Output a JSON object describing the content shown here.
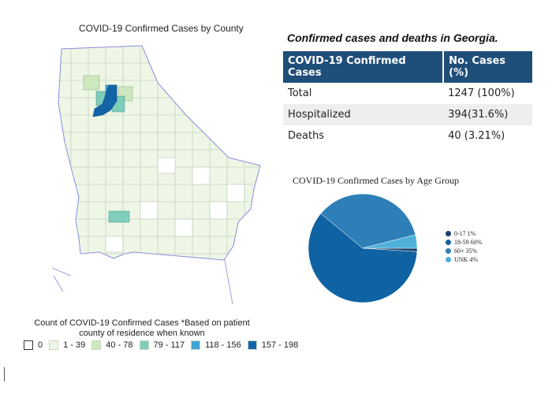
{
  "map": {
    "title": "COVID-19 Confirmed Cases by County",
    "legend_title": "Count of COVID-19 Confirmed Cases *Based on patient county of residence when known",
    "legend": [
      {
        "label": "0",
        "color": "#ffffff"
      },
      {
        "label": "1 - 39",
        "color": "#eef7e6"
      },
      {
        "label": "40 - 78",
        "color": "#cde8bf"
      },
      {
        "label": "79 - 117",
        "color": "#7fcdbb"
      },
      {
        "label": "118 - 156",
        "color": "#41a3d1"
      },
      {
        "label": "157 - 198",
        "color": "#1465a8"
      }
    ]
  },
  "table": {
    "caption": "Confirmed cases and deaths in Georgia.",
    "headers": [
      "COVID-19 Confirmed Cases",
      "No. Cases (%)"
    ],
    "rows": [
      [
        "Total",
        "1247 (100%)"
      ],
      [
        "Hospitalized",
        "394(31.6%)"
      ],
      [
        "Deaths",
        "40 (3.21%)"
      ]
    ]
  },
  "chart_data": {
    "type": "pie",
    "title": "COVID-19 Confirmed Cases by Age Group",
    "legend_position": "right",
    "slices": [
      {
        "label": "0-17 1%",
        "value": 1,
        "color": "#1d3f6e"
      },
      {
        "label": "18-59 60%",
        "value": 60,
        "color": "#0f63a3"
      },
      {
        "label": "60+ 35%",
        "value": 35,
        "color": "#2e7fb8"
      },
      {
        "label": "UNK 4%",
        "value": 4,
        "color": "#4fb0d8"
      }
    ]
  }
}
